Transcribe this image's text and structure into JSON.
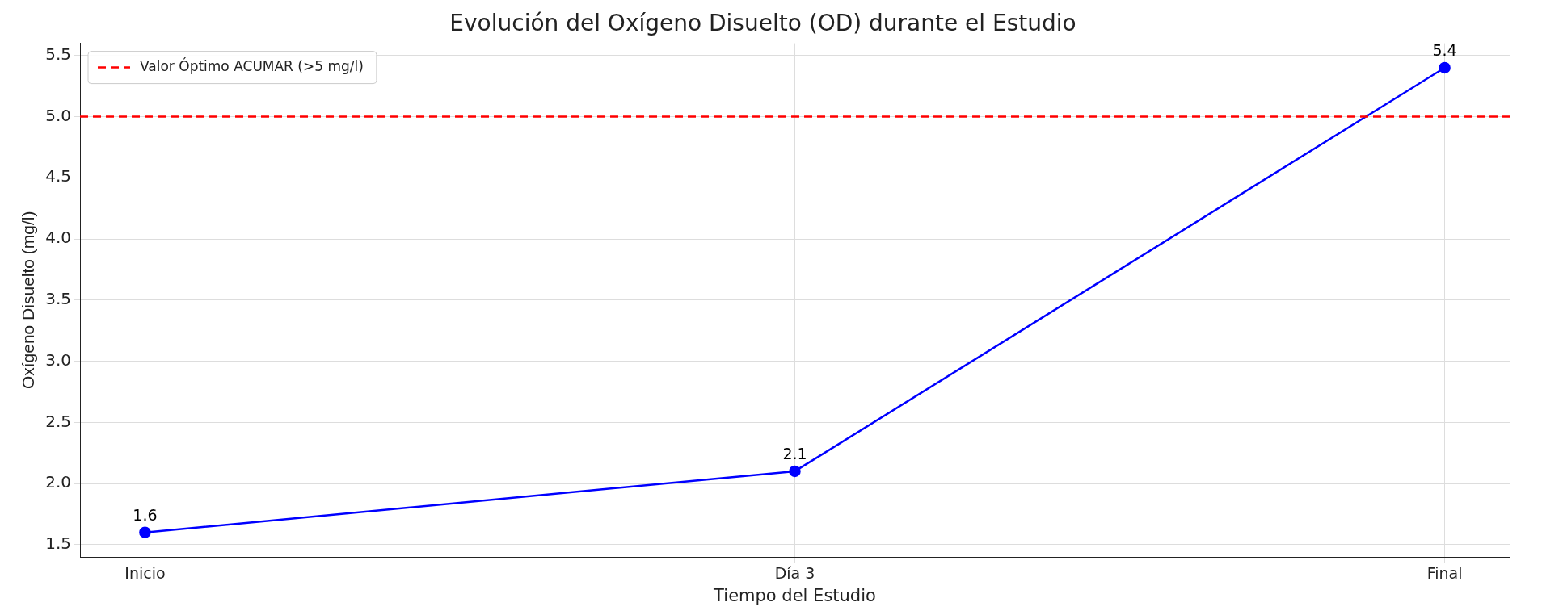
{
  "chart_data": {
    "type": "line",
    "title": "Evolución del Oxígeno Disuelto (OD) durante el Estudio",
    "xlabel": "Tiempo del Estudio",
    "ylabel": "Oxígeno Disuelto (mg/l)",
    "categories": [
      "Inicio",
      "Día 3",
      "Final"
    ],
    "series": [
      {
        "color": "#0000ff",
        "values": [
          1.6,
          2.1,
          5.4
        ]
      }
    ],
    "ylim": [
      1.4,
      5.6
    ],
    "yticks": [
      1.5,
      {
        "value": 2,
        "label": "2.0"
      },
      2.5,
      {
        "value": 3,
        "label": "3.0"
      },
      3.5,
      {
        "value": 4,
        "label": "4.0"
      },
      4.5,
      {
        "value": 5,
        "label": "5.0"
      },
      5.5
    ],
    "ref_lines": [
      {
        "axis": "y",
        "value": 5,
        "label": "Valor Óptimo ACUMAR (>5 mg/l)",
        "color": "#ff0000",
        "line_style": "dashed"
      }
    ],
    "data_labels": true,
    "grid": true,
    "legend": "top left",
    "marker": "circle",
    "line_style": "solid"
  }
}
